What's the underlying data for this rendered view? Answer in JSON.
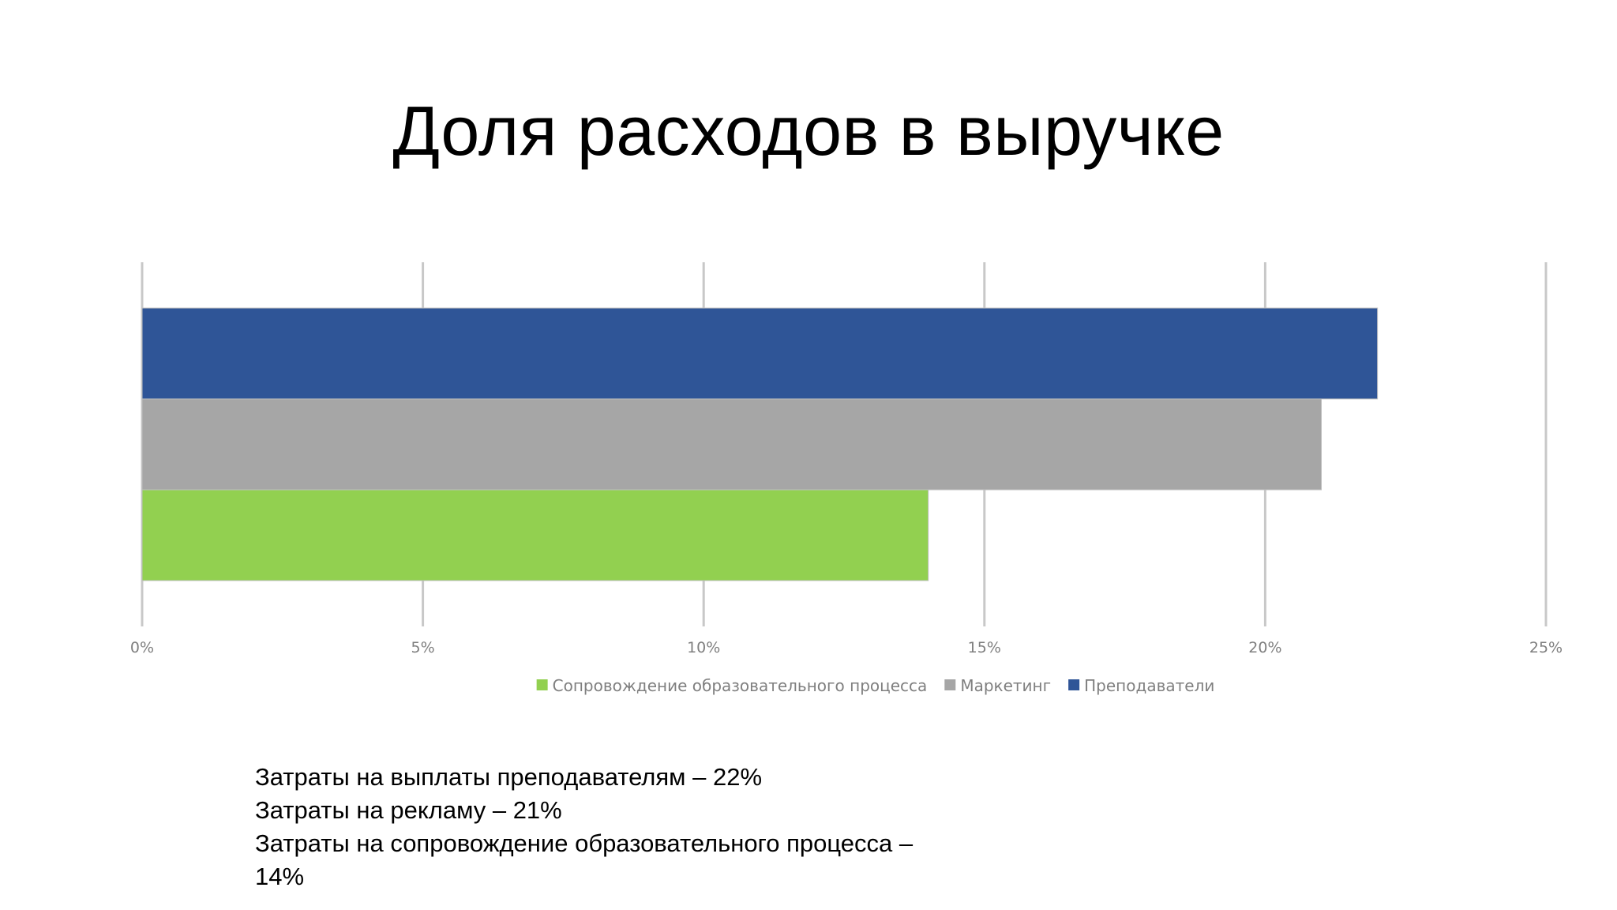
{
  "slide": {
    "title": "Доля расходов в выручке"
  },
  "chart_data": {
    "type": "bar",
    "orientation": "horizontal",
    "title": "",
    "xlabel": "",
    "ylabel": "",
    "xlim": [
      0,
      25
    ],
    "x_ticks": [
      "0%",
      "5%",
      "10%",
      "15%",
      "20%",
      "25%"
    ],
    "x_tick_values": [
      0,
      5,
      10,
      15,
      20,
      25
    ],
    "grid": true,
    "legend_position": "bottom",
    "series": [
      {
        "name": "Сопровождение образовательного процесса",
        "values": [
          14
        ],
        "color": "#92d050"
      },
      {
        "name": "Маркетинг",
        "values": [
          21
        ],
        "color": "#a6a6a6"
      },
      {
        "name": "Преподаватели",
        "values": [
          22
        ],
        "color": "#2f5597"
      }
    ]
  },
  "notes": [
    "Затраты на выплаты преподавателям – 22%",
    "Затраты на рекламу – 21%",
    "Затраты на сопровождение образовательного процесса –",
    "14%"
  ]
}
